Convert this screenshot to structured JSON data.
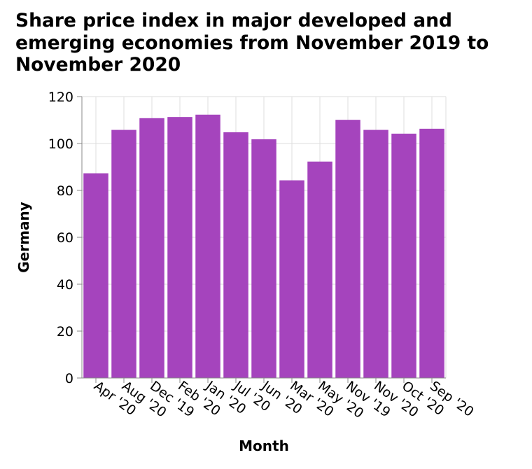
{
  "chart_data": {
    "type": "bar",
    "title": "Share price index in major developed and emerging economies from November 2019 to November 2020",
    "xlabel": "Month",
    "ylabel": "Germany",
    "categories": [
      "Apr '20",
      "Aug '20",
      "Dec '19",
      "Feb '20",
      "Jan '20",
      "Jul '20",
      "Jun '20",
      "Mar '20",
      "May '20",
      "Nov '19",
      "Nov '20",
      "Oct '20",
      "Sep '20"
    ],
    "values": [
      87.3,
      105.8,
      110.8,
      111.3,
      112.3,
      104.8,
      101.8,
      84.3,
      92.3,
      110.1,
      105.8,
      104.2,
      106.3
    ],
    "ylim": [
      0,
      120
    ],
    "yticks": [
      0,
      20,
      40,
      60,
      80,
      100,
      120
    ],
    "grid": true,
    "legend": "none",
    "bar_color": "#a544bd",
    "grid_color": "#dddddd",
    "axis_color": "#888888"
  }
}
